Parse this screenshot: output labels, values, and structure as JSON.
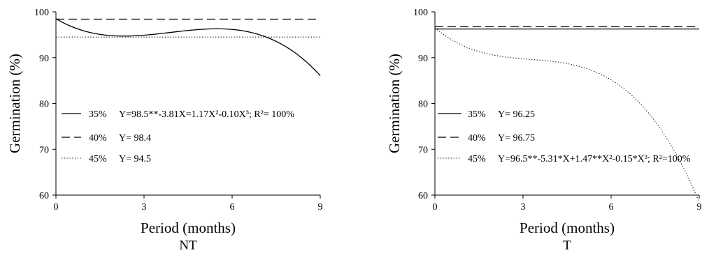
{
  "chart_data": [
    {
      "type": "line",
      "panel_label": "NT",
      "xlabel": "Period (months)",
      "ylabel": "Germination (%)",
      "xlim": [
        0,
        9
      ],
      "ylim": [
        60,
        100
      ],
      "xticks": [
        "0",
        "3",
        "6",
        "9"
      ],
      "yticks": [
        "60",
        "70",
        "80",
        "90",
        "100"
      ],
      "grid": false,
      "legend_placement": "center-left",
      "series": [
        {
          "name": "35%",
          "style": "solid",
          "equation": "Y=98.5**-3.81X=1.17X²-0.10X³; R²= 100%",
          "coefficients": [
            98.5,
            -3.81,
            1.17,
            -0.1
          ]
        },
        {
          "name": "40%",
          "style": "dashed",
          "equation": "Y= 98.4",
          "coefficients": [
            98.4
          ]
        },
        {
          "name": "45%",
          "style": "dotted",
          "equation": "Y= 94.5",
          "coefficients": [
            94.5
          ]
        }
      ]
    },
    {
      "type": "line",
      "panel_label": "T",
      "xlabel": "Period (months)",
      "ylabel": "Germination (%)",
      "xlim": [
        0,
        9
      ],
      "ylim": [
        60,
        100
      ],
      "xticks": [
        "0",
        "3",
        "6",
        "9"
      ],
      "yticks": [
        "60",
        "70",
        "80",
        "90",
        "100"
      ],
      "grid": false,
      "legend_placement": "center-left",
      "series": [
        {
          "name": "35%",
          "style": "solid",
          "equation": "Y= 96.25",
          "coefficients": [
            96.25
          ]
        },
        {
          "name": "40%",
          "style": "dashed",
          "equation": "Y= 96.75",
          "coefficients": [
            96.75
          ]
        },
        {
          "name": "45%",
          "style": "dotted",
          "equation": "Y=96.5**-5.31*X+1.47**X²-0.15*X³; R²=100%",
          "coefficients": [
            96.5,
            -5.31,
            1.47,
            -0.15
          ]
        }
      ]
    }
  ]
}
